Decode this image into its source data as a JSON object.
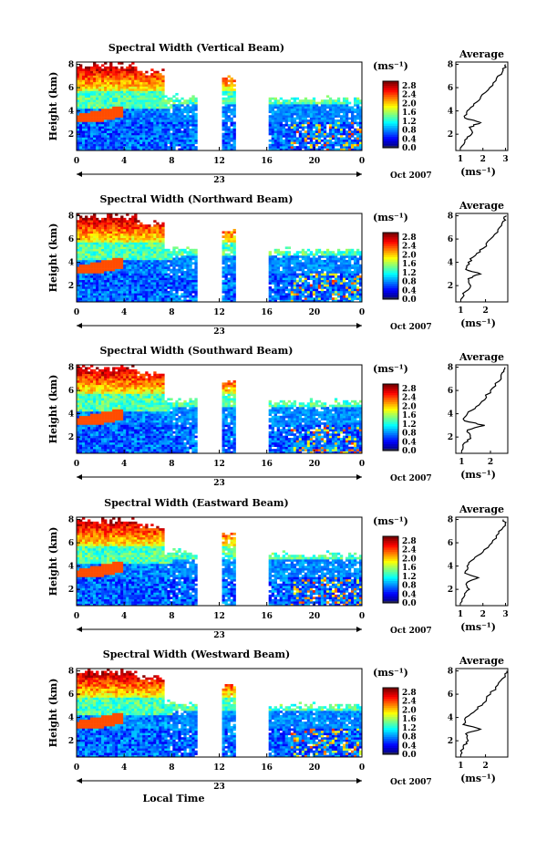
{
  "chart_data": [
    {
      "type": "heatmap",
      "title": "Spectral Width (Vertical Beam)",
      "ylabel": "Height (km)",
      "xlabel": "",
      "unit": "(ms⁻¹)",
      "x_ticks": [
        "0",
        "4",
        "8",
        "12",
        "16",
        "20",
        "0"
      ],
      "day_label": "23",
      "month_label": "Oct 2007",
      "y_ticks": [
        "2",
        "4",
        "6",
        "8"
      ],
      "colorbar_ticks": [
        "0.0",
        "0.4",
        "0.8",
        "1.2",
        "1.6",
        "2.0",
        "2.4",
        "2.8"
      ],
      "xlim": [
        0,
        24
      ],
      "ylim": [
        0.6,
        8.2
      ],
      "zlim": [
        0,
        3.0
      ],
      "gaps_hours": [
        [
          10.2,
          12.3
        ],
        [
          13.4,
          16.2
        ]
      ],
      "average": {
        "title": "Average",
        "xlabel": "(ms⁻¹)",
        "x_ticks": [
          "1",
          "2",
          "3"
        ],
        "y_ticks": [
          "2",
          "4",
          "6",
          "8"
        ],
        "xlim": [
          0.8,
          3.1
        ],
        "height_km": [
          0.8,
          1.5,
          2.0,
          2.6,
          3.0,
          3.4,
          4.0,
          4.6,
          5.2,
          6.0,
          6.8,
          7.5,
          8.0
        ],
        "width_ms": [
          1.0,
          1.2,
          1.5,
          1.4,
          1.9,
          1.2,
          1.3,
          1.6,
          1.9,
          2.3,
          2.6,
          2.9,
          3.0
        ]
      }
    },
    {
      "type": "heatmap",
      "title": "Spectral Width (Northward Beam)",
      "ylabel": "Height (km)",
      "xlabel": "",
      "unit": "(ms⁻¹)",
      "x_ticks": [
        "0",
        "4",
        "8",
        "12",
        "16",
        "20",
        "0"
      ],
      "day_label": "23",
      "month_label": "Oct 2007",
      "y_ticks": [
        "2",
        "4",
        "6",
        "8"
      ],
      "colorbar_ticks": [
        "0.0",
        "0.4",
        "0.8",
        "1.2",
        "1.6",
        "2.0",
        "2.4",
        "2.8"
      ],
      "xlim": [
        0,
        24
      ],
      "ylim": [
        0.6,
        8.2
      ],
      "zlim": [
        0,
        3.0
      ],
      "gaps_hours": [
        [
          10.2,
          12.3
        ],
        [
          13.4,
          16.2
        ]
      ],
      "average": {
        "title": "Average",
        "xlabel": "(ms⁻¹)",
        "x_ticks": [
          "1",
          "2"
        ],
        "y_ticks": [
          "2",
          "4",
          "6",
          "8"
        ],
        "xlim": [
          0.8,
          2.9
        ],
        "height_km": [
          0.8,
          1.5,
          2.0,
          2.6,
          3.0,
          3.4,
          4.0,
          4.6,
          5.2,
          6.0,
          6.8,
          7.5,
          8.0
        ],
        "width_ms": [
          1.0,
          1.2,
          1.4,
          1.3,
          1.8,
          1.2,
          1.3,
          1.6,
          1.9,
          2.2,
          2.5,
          2.7,
          2.85
        ]
      }
    },
    {
      "type": "heatmap",
      "title": "Spectral Width (Southward Beam)",
      "ylabel": "Height (km)",
      "xlabel": "",
      "unit": "(ms⁻¹)",
      "x_ticks": [
        "0",
        "4",
        "8",
        "12",
        "16",
        "20",
        "0"
      ],
      "day_label": "23",
      "month_label": "Oct 2007",
      "y_ticks": [
        "2",
        "4",
        "6",
        "8"
      ],
      "colorbar_ticks": [
        "0.0",
        "0.4",
        "0.8",
        "1.2",
        "1.6",
        "2.0",
        "2.4",
        "2.8"
      ],
      "xlim": [
        0,
        24
      ],
      "ylim": [
        0.6,
        8.2
      ],
      "zlim": [
        0,
        3.0
      ],
      "gaps_hours": [
        [
          10.2,
          12.3
        ],
        [
          13.4,
          16.2
        ]
      ],
      "average": {
        "title": "Average",
        "xlabel": "(ms⁻¹)",
        "x_ticks": [
          "1",
          "2"
        ],
        "y_ticks": [
          "2",
          "4",
          "6",
          "8"
        ],
        "xlim": [
          0.8,
          2.6
        ],
        "height_km": [
          0.8,
          1.5,
          2.0,
          2.6,
          3.0,
          3.4,
          4.0,
          4.6,
          5.2,
          6.0,
          6.8,
          7.5,
          8.0
        ],
        "width_ms": [
          1.0,
          1.1,
          1.3,
          1.2,
          1.8,
          1.1,
          1.2,
          1.5,
          1.8,
          2.0,
          2.3,
          2.4,
          2.5
        ]
      }
    },
    {
      "type": "heatmap",
      "title": "Spectral Width (Eastward Beam)",
      "ylabel": "Height (km)",
      "xlabel": "",
      "unit": "(ms⁻¹)",
      "x_ticks": [
        "0",
        "4",
        "8",
        "12",
        "16",
        "20",
        "0"
      ],
      "day_label": "23",
      "month_label": "Oct 2007",
      "y_ticks": [
        "2",
        "4",
        "6",
        "8"
      ],
      "colorbar_ticks": [
        "0.0",
        "0.4",
        "0.8",
        "1.2",
        "1.6",
        "2.0",
        "2.4",
        "2.8"
      ],
      "xlim": [
        0,
        24
      ],
      "ylim": [
        0.6,
        8.2
      ],
      "zlim": [
        0,
        3.0
      ],
      "gaps_hours": [
        [
          10.2,
          12.3
        ],
        [
          13.4,
          16.2
        ]
      ],
      "average": {
        "title": "Average",
        "xlabel": "(ms⁻¹)",
        "x_ticks": [
          "1",
          "2",
          "3"
        ],
        "y_ticks": [
          "2",
          "4",
          "6",
          "8"
        ],
        "xlim": [
          0.8,
          3.1
        ],
        "height_km": [
          0.8,
          1.5,
          2.0,
          2.6,
          3.0,
          3.4,
          4.0,
          4.6,
          5.2,
          6.0,
          6.8,
          7.5,
          8.0
        ],
        "width_ms": [
          1.0,
          1.2,
          1.4,
          1.3,
          1.8,
          1.2,
          1.3,
          1.6,
          2.0,
          2.4,
          2.7,
          3.0,
          2.9
        ]
      }
    },
    {
      "type": "heatmap",
      "title": "Spectral Width (Westward Beam)",
      "ylabel": "Height (km)",
      "xlabel": "Local Time",
      "unit": "(ms⁻¹)",
      "x_ticks": [
        "0",
        "4",
        "8",
        "12",
        "16",
        "20",
        "0"
      ],
      "day_label": "23",
      "month_label": "Oct 2007",
      "y_ticks": [
        "2",
        "4",
        "6",
        "8"
      ],
      "colorbar_ticks": [
        "0.0",
        "0.4",
        "0.8",
        "1.2",
        "1.6",
        "2.0",
        "2.4",
        "2.8"
      ],
      "xlim": [
        0,
        24
      ],
      "ylim": [
        0.6,
        8.2
      ],
      "zlim": [
        0,
        3.0
      ],
      "gaps_hours": [
        [
          10.2,
          12.3
        ],
        [
          13.4,
          16.2
        ]
      ],
      "average": {
        "title": "Average",
        "xlabel": "(ms⁻¹)",
        "x_ticks": [
          "1",
          "2"
        ],
        "y_ticks": [
          "2",
          "4",
          "6",
          "8"
        ],
        "xlim": [
          0.8,
          2.9
        ],
        "height_km": [
          0.8,
          1.5,
          2.0,
          2.6,
          3.0,
          3.4,
          4.0,
          4.6,
          5.2,
          6.0,
          6.8,
          7.5,
          8.0
        ],
        "width_ms": [
          1.0,
          1.1,
          1.3,
          1.2,
          1.8,
          1.1,
          1.2,
          1.6,
          1.9,
          2.2,
          2.5,
          2.8,
          2.85
        ]
      }
    }
  ]
}
